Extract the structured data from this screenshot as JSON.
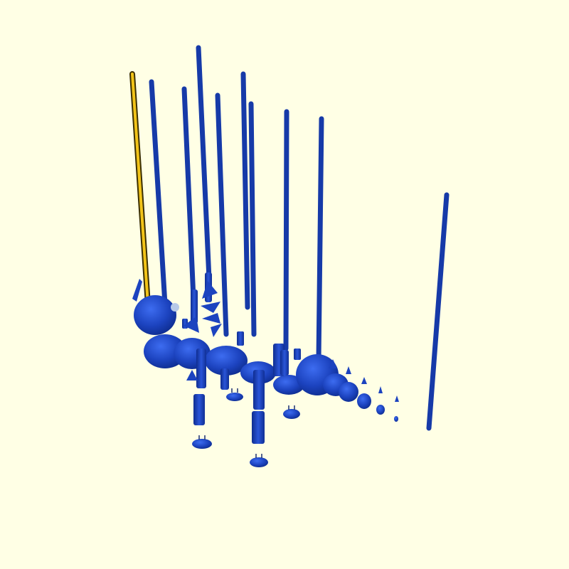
{
  "viewport": {
    "background": "#ffffe5",
    "model_color": "#1f45c0",
    "model_shadow": "#0f2a8a",
    "model_highlight": "#3a66e6",
    "selected_color": "#f2c418",
    "selected_outline": "#3b2f00"
  },
  "scene": {
    "description_icon": "3d-model-icon"
  }
}
